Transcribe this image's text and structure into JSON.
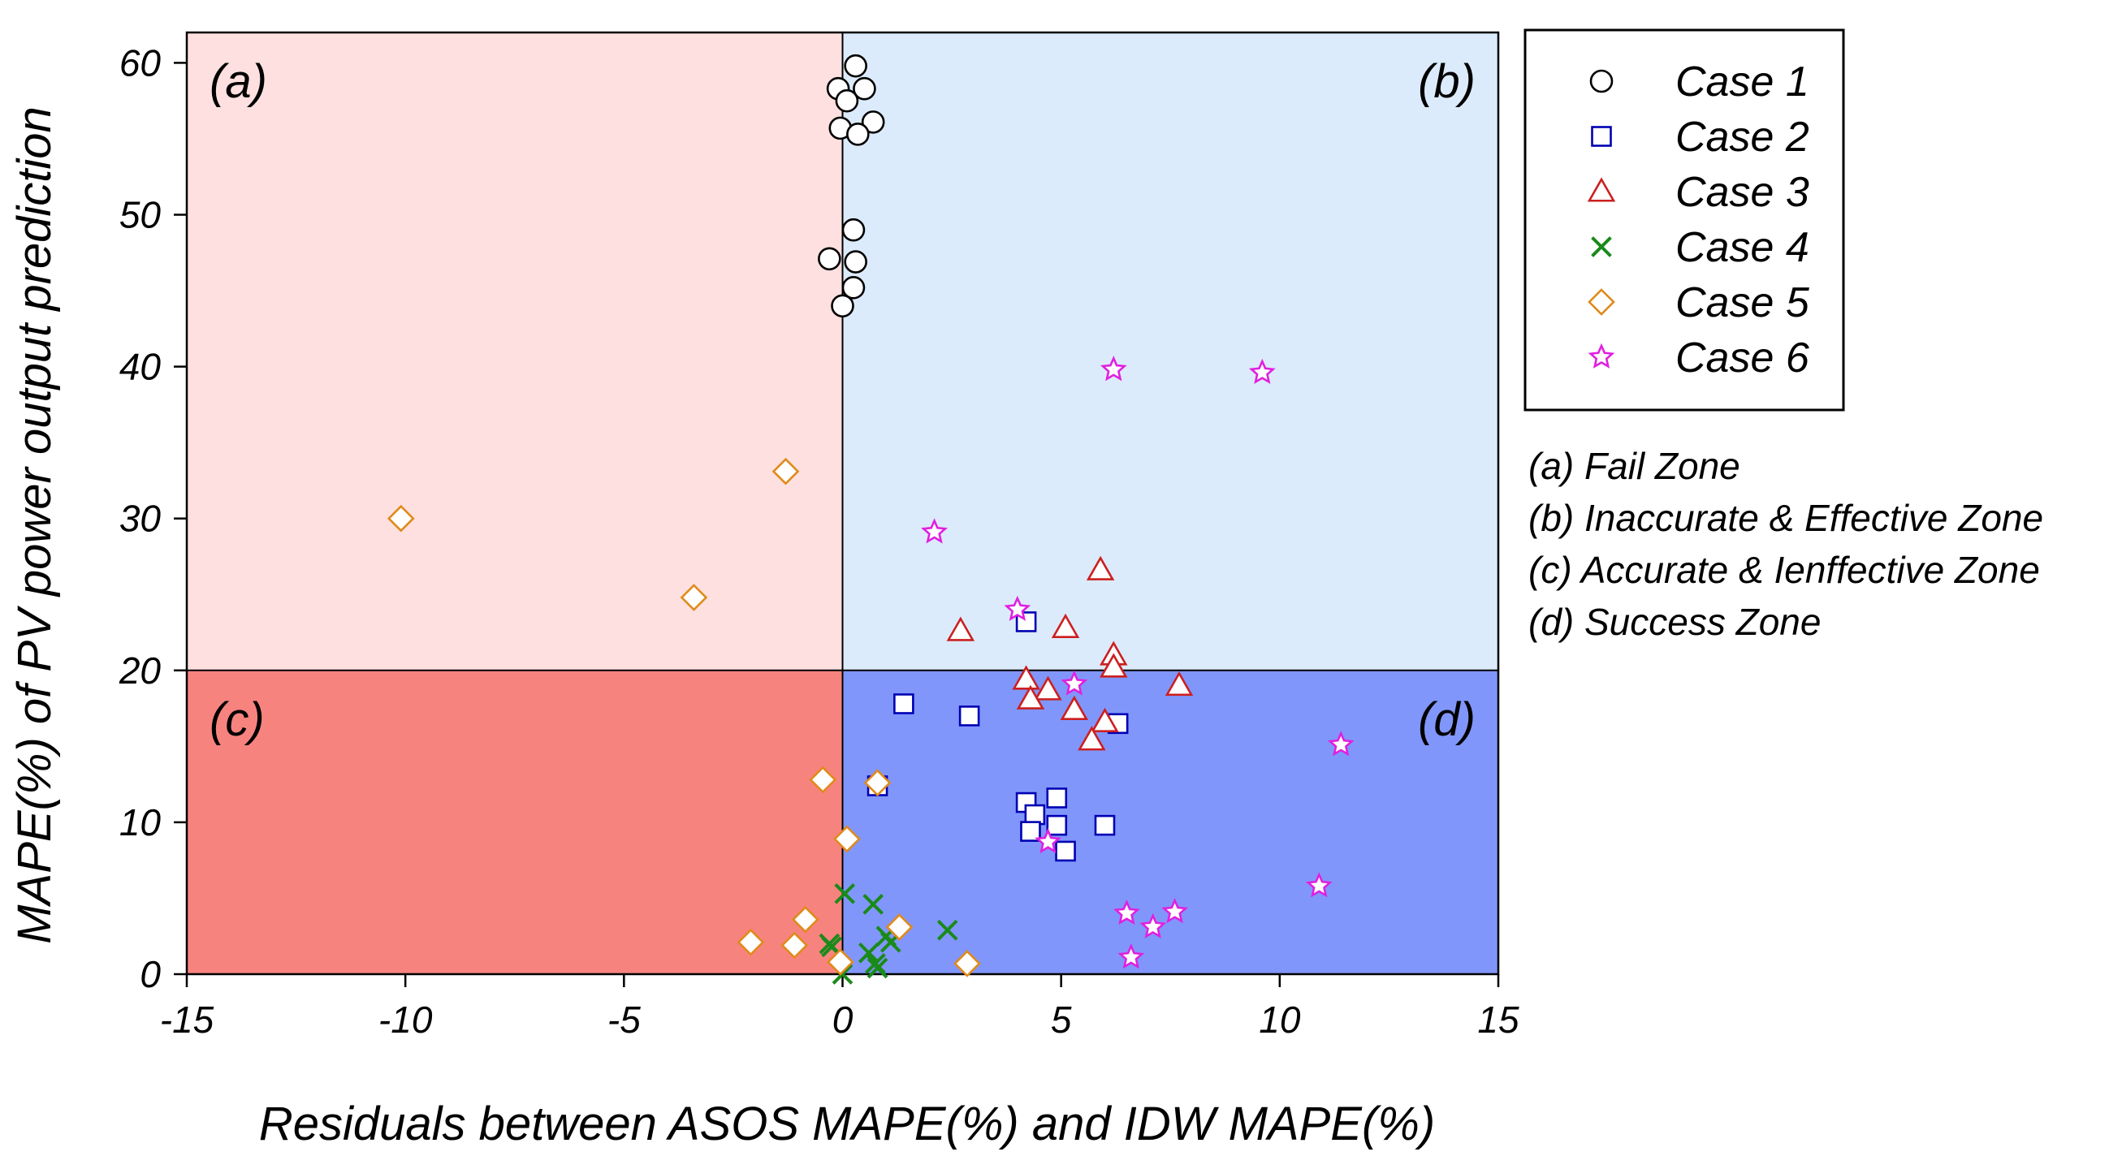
{
  "chart_data": {
    "type": "scatter",
    "title": "",
    "xlabel": "Residuals between ASOS MAPE(%) and IDW MAPE(%)",
    "ylabel": "MAPE(%) of PV power output prediction",
    "xlim": [
      -15,
      15
    ],
    "ylim": [
      0,
      62
    ],
    "xticks": [
      -15,
      -10,
      -5,
      0,
      5,
      10,
      15
    ],
    "yticks": [
      0,
      10,
      20,
      30,
      40,
      50,
      60
    ],
    "xtick_labels": [
      "-15",
      "-10",
      "-5",
      "0",
      "5",
      "10",
      "15"
    ],
    "ytick_labels": [
      "0",
      "10",
      "20",
      "30",
      "40",
      "50",
      "60"
    ],
    "thresholds": {
      "x": 0,
      "y": 20
    },
    "zones": [
      {
        "id": "a",
        "label": "(a)",
        "name": "Fail Zone",
        "definition": "(a) Fail Zone",
        "color": "#fde0df"
      },
      {
        "id": "b",
        "label": "(b)",
        "name": "Inaccurate & Effective Zone",
        "definition": "(b) Inaccurate & Effective Zone",
        "color": "#dcebfc"
      },
      {
        "id": "c",
        "label": "(c)",
        "name": "Accurate & Ienffective Zone",
        "definition": "(c) Accurate & Ienffective Zone",
        "color": "#f7837f"
      },
      {
        "id": "d",
        "label": "(d)",
        "name": "Success Zone",
        "definition": "(d) Success Zone",
        "color": "#8196fa"
      }
    ],
    "series": [
      {
        "name": "Case 1",
        "marker": "circle",
        "color": "#000000",
        "points": [
          [
            0.3,
            59.8
          ],
          [
            -0.1,
            58.3
          ],
          [
            0.5,
            58.3
          ],
          [
            0.1,
            57.5
          ],
          [
            0.7,
            56.1
          ],
          [
            -0.05,
            55.7
          ],
          [
            0.35,
            55.3
          ],
          [
            0.25,
            49.0
          ],
          [
            -0.3,
            47.1
          ],
          [
            0.3,
            46.9
          ],
          [
            0.25,
            45.2
          ],
          [
            0.0,
            44.0
          ]
        ]
      },
      {
        "name": "Case 2",
        "marker": "square",
        "color": "#0000b3",
        "points": [
          [
            4.2,
            23.2
          ],
          [
            1.4,
            17.8
          ],
          [
            2.9,
            17.0
          ],
          [
            6.3,
            16.5
          ],
          [
            0.8,
            12.4
          ],
          [
            4.2,
            11.3
          ],
          [
            4.9,
            11.6
          ],
          [
            4.4,
            10.5
          ],
          [
            4.9,
            9.8
          ],
          [
            4.3,
            9.4
          ],
          [
            6.0,
            9.8
          ],
          [
            5.1,
            8.1
          ]
        ]
      },
      {
        "name": "Case 3",
        "marker": "triangle",
        "color": "#cc1f1f",
        "points": [
          [
            5.9,
            26.6
          ],
          [
            2.7,
            22.6
          ],
          [
            5.1,
            22.8
          ],
          [
            6.2,
            21.0
          ],
          [
            6.2,
            20.2
          ],
          [
            4.2,
            19.4
          ],
          [
            7.7,
            19.0
          ],
          [
            4.7,
            18.7
          ],
          [
            4.3,
            18.1
          ],
          [
            5.3,
            17.4
          ],
          [
            6.0,
            16.6
          ],
          [
            5.7,
            15.4
          ]
        ]
      },
      {
        "name": "Case 4",
        "marker": "x",
        "color": "#1a8a1a",
        "points": [
          [
            0.05,
            5.3
          ],
          [
            0.7,
            4.6
          ],
          [
            2.4,
            2.9
          ],
          [
            1.0,
            2.5
          ],
          [
            1.1,
            2.1
          ],
          [
            -0.3,
            2.0
          ],
          [
            -0.25,
            1.8
          ],
          [
            0.6,
            1.4
          ],
          [
            0.75,
            0.7
          ],
          [
            0.8,
            0.4
          ],
          [
            0.0,
            0.0
          ]
        ]
      },
      {
        "name": "Case 5",
        "marker": "diamond",
        "color": "#e08a1a",
        "points": [
          [
            -1.3,
            33.1
          ],
          [
            -10.1,
            30.0
          ],
          [
            -3.4,
            24.8
          ],
          [
            -0.45,
            12.8
          ],
          [
            0.8,
            12.6
          ],
          [
            0.1,
            8.9
          ],
          [
            -0.85,
            3.6
          ],
          [
            1.3,
            3.1
          ],
          [
            -2.1,
            2.1
          ],
          [
            -1.1,
            1.9
          ],
          [
            -0.05,
            0.8
          ],
          [
            2.85,
            0.7
          ]
        ]
      },
      {
        "name": "Case 6",
        "marker": "star",
        "color": "#e020e0",
        "points": [
          [
            6.2,
            39.8
          ],
          [
            9.6,
            39.6
          ],
          [
            2.1,
            29.1
          ],
          [
            4.0,
            24.0
          ],
          [
            5.3,
            19.1
          ],
          [
            11.4,
            15.1
          ],
          [
            4.7,
            8.7
          ],
          [
            10.9,
            5.8
          ],
          [
            6.5,
            4.0
          ],
          [
            7.6,
            4.1
          ],
          [
            7.1,
            3.1
          ],
          [
            6.6,
            1.1
          ]
        ]
      }
    ],
    "legend": {
      "placement": "right",
      "entries": [
        "Case 1",
        "Case 2",
        "Case 3",
        "Case 4",
        "Case 5",
        "Case 6"
      ]
    }
  }
}
